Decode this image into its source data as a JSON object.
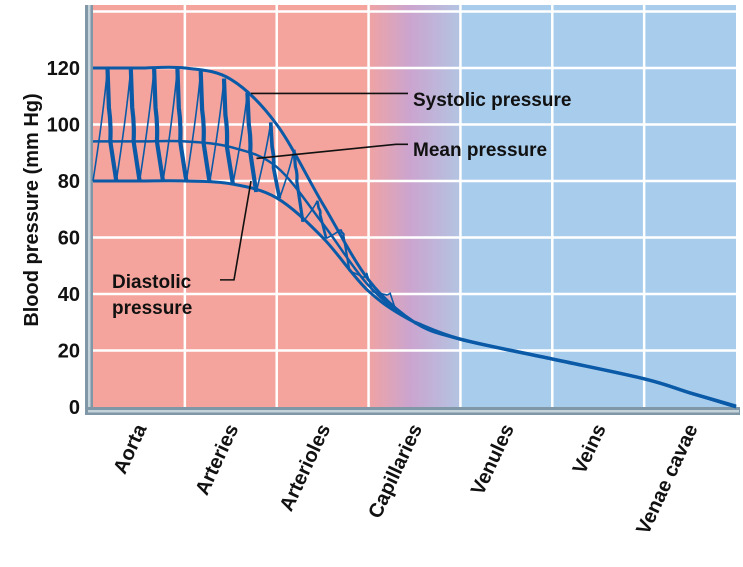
{
  "chart_data": {
    "type": "line",
    "title": "",
    "xlabel": "",
    "ylabel": "Blood pressure (mm Hg)",
    "ylim": [
      0,
      140
    ],
    "yticks": [
      0,
      20,
      40,
      60,
      80,
      100,
      120
    ],
    "grid": true,
    "categories": [
      "Aorta",
      "Arteries",
      "Arterioles",
      "Capillaries",
      "Venules",
      "Veins",
      "Venae cavae"
    ],
    "regions": [
      {
        "name": "arterial",
        "from": "Aorta",
        "to": "Arterioles",
        "color": "#f4a49c"
      },
      {
        "name": "capillary",
        "from": "Capillaries",
        "to": "Capillaries",
        "color_start": "#f0a3a3",
        "color_mid": "#cba4cf",
        "color_end": "#b3c4e2"
      },
      {
        "name": "venous",
        "from": "Venules",
        "to": "Venae cavae",
        "color": "#a8ccec"
      }
    ],
    "line_color": "#0a5aa8",
    "series": [
      {
        "name": "Systolic pressure",
        "x": [
          0,
          0.5,
          1,
          1.5,
          2,
          2.5,
          3,
          3.5,
          4,
          5,
          6,
          6.5,
          7
        ],
        "values": [
          120,
          120,
          120,
          116,
          100,
          72,
          45,
          30,
          24,
          17,
          10,
          5,
          0
        ]
      },
      {
        "name": "Mean pressure",
        "x": [
          0,
          0.5,
          1,
          1.5,
          2,
          2.5,
          3,
          3.5,
          4,
          5,
          6,
          6.5,
          7
        ],
        "values": [
          94,
          94,
          94,
          92,
          85,
          65,
          43,
          30,
          24,
          17,
          10,
          5,
          0
        ]
      },
      {
        "name": "Diastolic pressure",
        "x": [
          0,
          0.5,
          1,
          1.5,
          2,
          2.5,
          3,
          3.5,
          4,
          5,
          6,
          6.5,
          7
        ],
        "values": [
          80,
          80,
          80,
          79,
          74,
          60,
          41,
          30,
          24,
          17,
          10,
          5,
          0
        ]
      }
    ],
    "pulse_count": 13,
    "annotations": [
      {
        "text": "Systolic pressure",
        "points_to": "Systolic pressure"
      },
      {
        "text": "Mean pressure",
        "points_to": "Mean pressure"
      },
      {
        "text": "Diastolic",
        "text2": "pressure",
        "points_to": "Diastolic pressure"
      }
    ]
  }
}
